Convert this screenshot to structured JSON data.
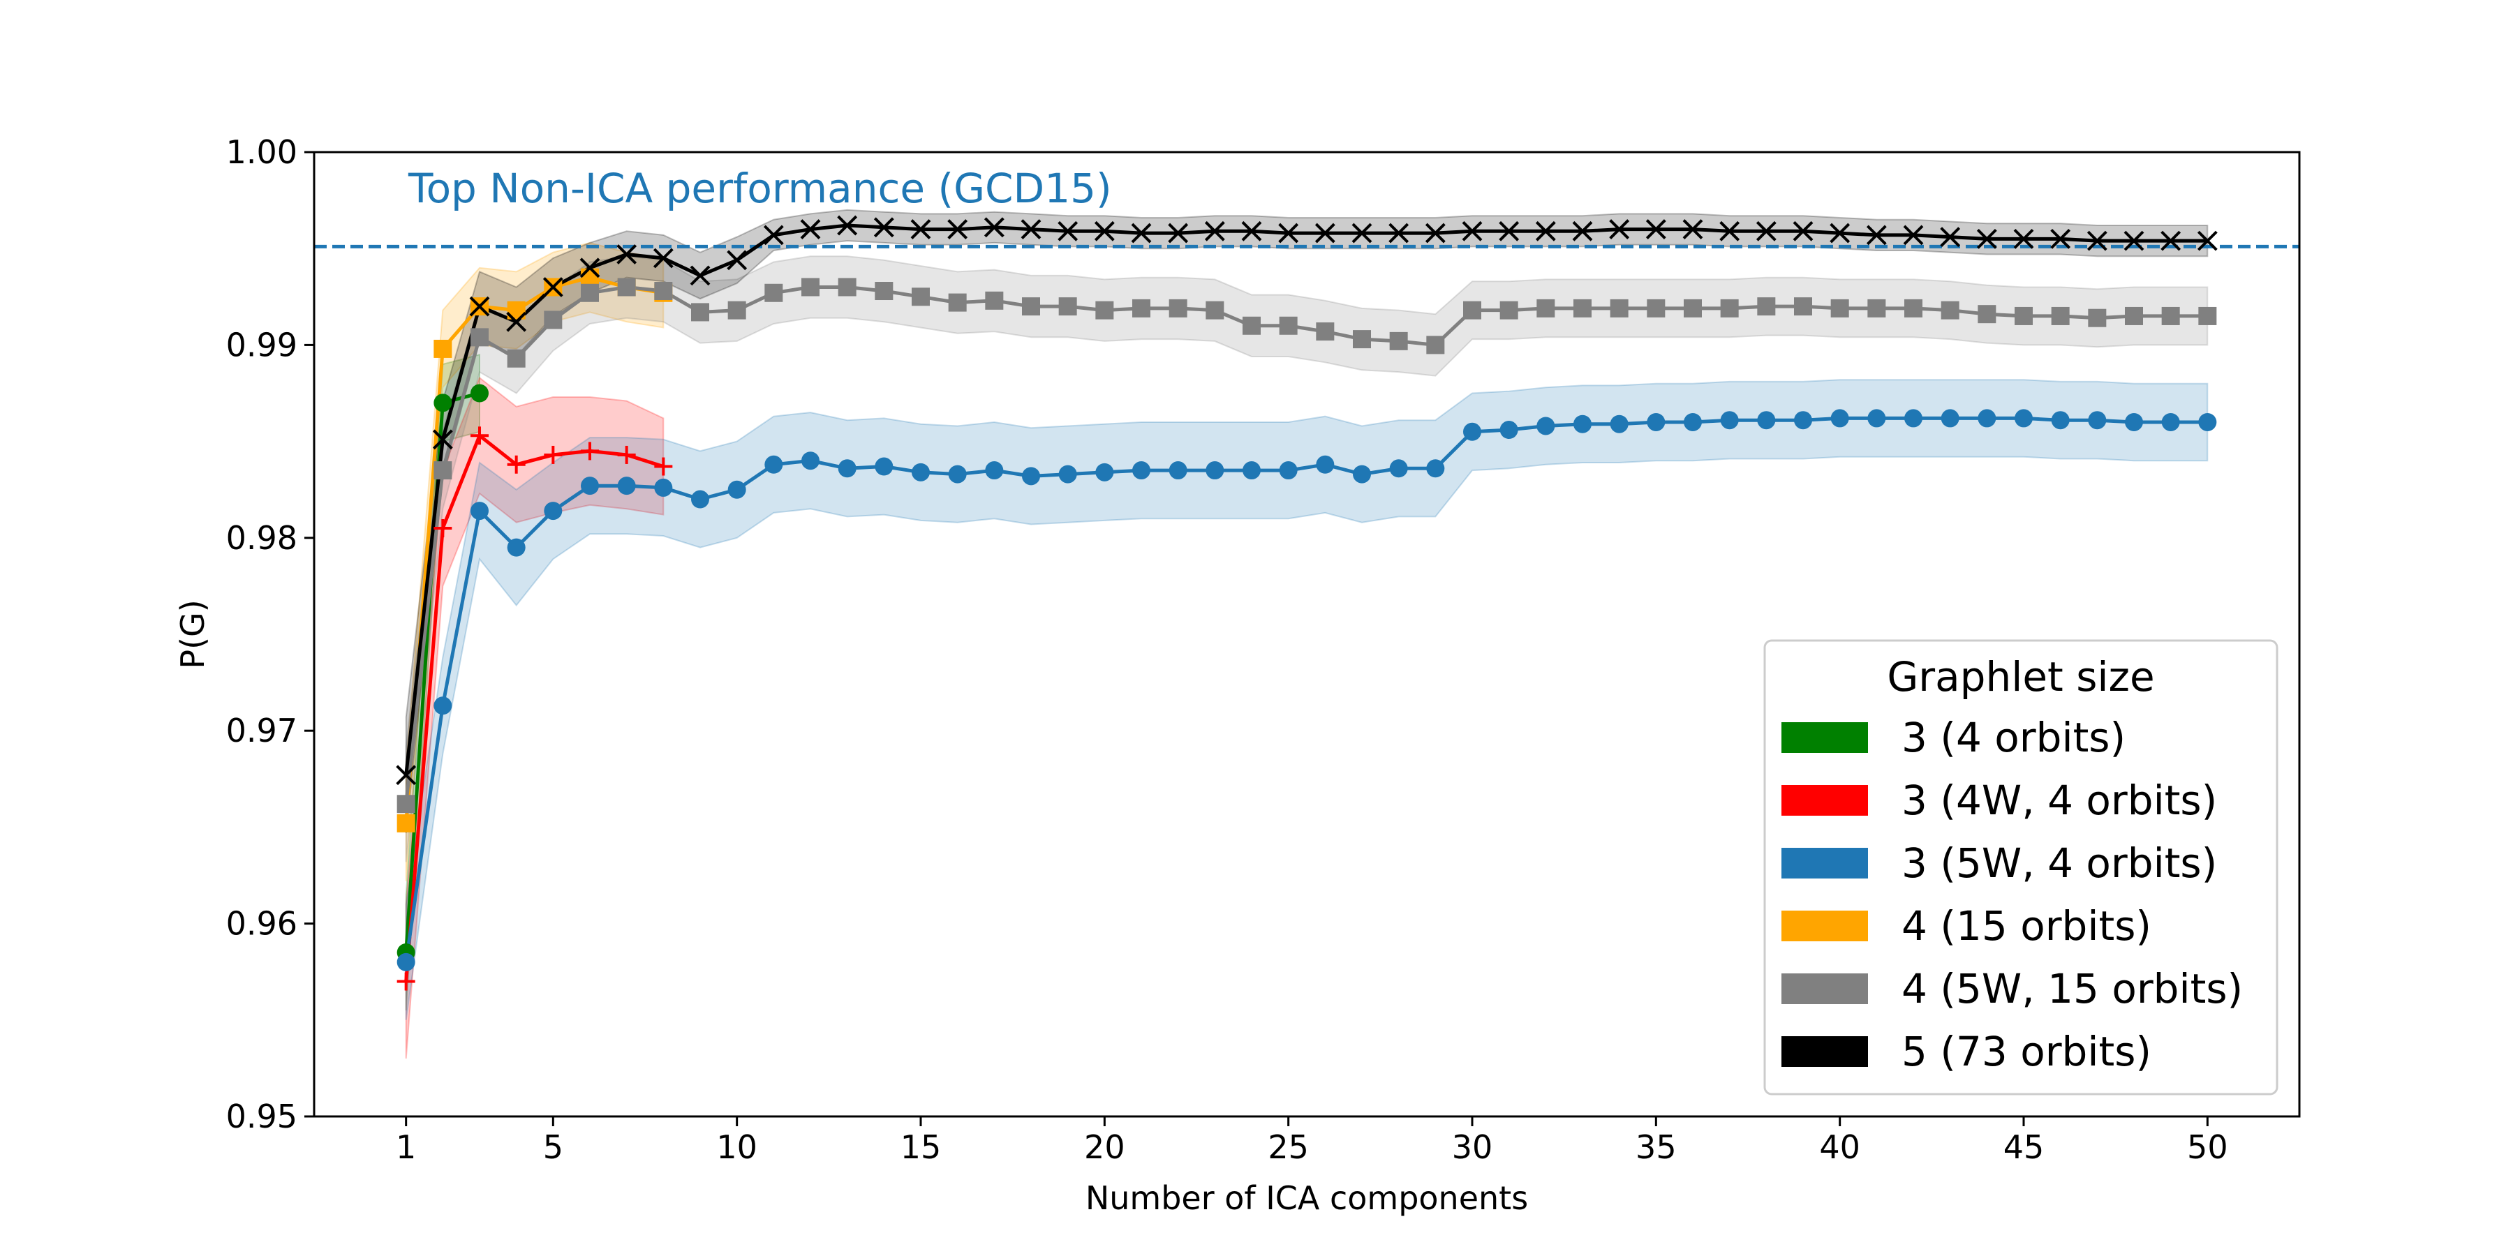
{
  "chart_data": {
    "type": "line",
    "title": "",
    "xlabel": "Number of ICA components",
    "ylabel": "P(G)",
    "xlim": [
      -1.5,
      52.5
    ],
    "ylim": [
      0.95,
      1.0
    ],
    "xticks": [
      1,
      5,
      10,
      15,
      20,
      25,
      30,
      35,
      40,
      45,
      50
    ],
    "yticks": [
      0.95,
      0.96,
      0.97,
      0.98,
      0.99,
      1.0
    ],
    "ytick_labels": [
      "0.95",
      "0.96",
      "0.97",
      "0.98",
      "0.99",
      "1.00"
    ],
    "reference_line": {
      "value": 0.9951,
      "label": "Top Non-ICA performance (GCD15)",
      "color": "#1f77b4",
      "style": "dashed"
    },
    "legend": {
      "title": "Graphlet size",
      "position": "lower-right"
    },
    "series": [
      {
        "name": "3 (4 orbits)",
        "color": "#008000",
        "marker": "circle",
        "x": [
          1,
          2,
          3
        ],
        "values": [
          0.9585,
          0.987,
          0.9875
        ],
        "band": [
          0.003,
          0.002,
          0.002
        ]
      },
      {
        "name": "3 (4W, 4 orbits)",
        "color": "#ff0000",
        "marker": "plus",
        "x": [
          1,
          2,
          3,
          4,
          5,
          6,
          7,
          8
        ],
        "values": [
          0.957,
          0.9805,
          0.9853,
          0.9838,
          0.9843,
          0.9845,
          0.9843,
          0.9837
        ],
        "band": [
          0.004,
          0.003,
          0.003,
          0.003,
          0.003,
          0.0028,
          0.0028,
          0.0025
        ]
      },
      {
        "name": "3 (5W, 4 orbits)",
        "color": "#1f77b4",
        "marker": "circle",
        "x": [
          1,
          2,
          3,
          4,
          5,
          6,
          7,
          8,
          9,
          10,
          11,
          12,
          13,
          14,
          15,
          16,
          17,
          18,
          19,
          20,
          21,
          22,
          23,
          24,
          25,
          26,
          27,
          28,
          29,
          30,
          31,
          32,
          33,
          34,
          35,
          36,
          37,
          38,
          39,
          40,
          41,
          42,
          43,
          44,
          45,
          46,
          47,
          48,
          49,
          50
        ],
        "values": [
          0.958,
          0.9713,
          0.9814,
          0.9795,
          0.9814,
          0.9827,
          0.9827,
          0.9826,
          0.982,
          0.9825,
          0.9838,
          0.984,
          0.9836,
          0.9837,
          0.9834,
          0.9833,
          0.9835,
          0.9832,
          0.9833,
          0.9834,
          0.9835,
          0.9835,
          0.9835,
          0.9835,
          0.9835,
          0.9838,
          0.9833,
          0.9836,
          0.9836,
          0.9855,
          0.9856,
          0.9858,
          0.9859,
          0.9859,
          0.986,
          0.986,
          0.9861,
          0.9861,
          0.9861,
          0.9862,
          0.9862,
          0.9862,
          0.9862,
          0.9862,
          0.9862,
          0.9861,
          0.9861,
          0.986,
          0.986,
          0.986
        ],
        "band": [
          0.003,
          0.0025,
          0.0025,
          0.003,
          0.0025,
          0.0025,
          0.0025,
          0.0025,
          0.0025,
          0.0025,
          0.0025,
          0.0025,
          0.0025,
          0.0025,
          0.0025,
          0.0025,
          0.0025,
          0.0025,
          0.0025,
          0.0025,
          0.0025,
          0.0025,
          0.0025,
          0.0025,
          0.0025,
          0.0025,
          0.0025,
          0.0025,
          0.0025,
          0.002,
          0.002,
          0.002,
          0.002,
          0.002,
          0.002,
          0.002,
          0.002,
          0.002,
          0.002,
          0.002,
          0.002,
          0.002,
          0.002,
          0.002,
          0.002,
          0.002,
          0.002,
          0.002,
          0.002,
          0.002
        ]
      },
      {
        "name": "4 (15 orbits)",
        "color": "#ffa500",
        "marker": "square",
        "x": [
          1,
          2,
          3,
          4,
          5,
          6,
          7,
          8
        ],
        "values": [
          0.9652,
          0.9898,
          0.992,
          0.9918,
          0.993,
          0.9935,
          0.993,
          0.9927
        ],
        "band": [
          0.003,
          0.002,
          0.002,
          0.002,
          0.0018,
          0.0018,
          0.0018,
          0.0018
        ]
      },
      {
        "name": "4 (5W, 15 orbits)",
        "color": "#808080",
        "marker": "square",
        "x": [
          1,
          2,
          3,
          4,
          5,
          6,
          7,
          8,
          9,
          10,
          11,
          12,
          13,
          14,
          15,
          16,
          17,
          18,
          19,
          20,
          21,
          22,
          23,
          24,
          25,
          26,
          27,
          28,
          29,
          30,
          31,
          32,
          33,
          34,
          35,
          36,
          37,
          38,
          39,
          40,
          41,
          42,
          43,
          44,
          45,
          46,
          47,
          48,
          49,
          50
        ],
        "values": [
          0.9662,
          0.9835,
          0.9904,
          0.9893,
          0.9913,
          0.9927,
          0.993,
          0.9928,
          0.9917,
          0.9918,
          0.9927,
          0.993,
          0.993,
          0.9928,
          0.9925,
          0.9922,
          0.9923,
          0.992,
          0.992,
          0.9918,
          0.9919,
          0.9919,
          0.9918,
          0.991,
          0.991,
          0.9907,
          0.9903,
          0.9902,
          0.99,
          0.9918,
          0.9918,
          0.9919,
          0.9919,
          0.9919,
          0.9919,
          0.9919,
          0.9919,
          0.992,
          0.992,
          0.9919,
          0.9919,
          0.9919,
          0.9918,
          0.9916,
          0.9915,
          0.9915,
          0.9914,
          0.9915,
          0.9915,
          0.9915
        ],
        "band": [
          0.003,
          0.002,
          0.0018,
          0.0018,
          0.0016,
          0.0016,
          0.0016,
          0.0016,
          0.0016,
          0.0016,
          0.0016,
          0.0016,
          0.0016,
          0.0016,
          0.0016,
          0.0016,
          0.0016,
          0.0016,
          0.0016,
          0.0016,
          0.0016,
          0.0016,
          0.0016,
          0.0016,
          0.0016,
          0.0016,
          0.0016,
          0.0016,
          0.0016,
          0.0015,
          0.0015,
          0.0015,
          0.0015,
          0.0015,
          0.0015,
          0.0015,
          0.0015,
          0.0015,
          0.0015,
          0.0015,
          0.0015,
          0.0015,
          0.0015,
          0.0015,
          0.0015,
          0.0015,
          0.0015,
          0.0015,
          0.0015,
          0.0015
        ]
      },
      {
        "name": "5 (73 orbits)",
        "color": "#000000",
        "marker": "x",
        "x": [
          1,
          2,
          3,
          4,
          5,
          6,
          7,
          8,
          9,
          10,
          11,
          12,
          13,
          14,
          15,
          16,
          17,
          18,
          19,
          20,
          21,
          22,
          23,
          24,
          25,
          26,
          27,
          28,
          29,
          30,
          31,
          32,
          33,
          34,
          35,
          36,
          37,
          38,
          39,
          40,
          41,
          42,
          43,
          44,
          45,
          46,
          47,
          48,
          49,
          50
        ],
        "values": [
          0.9677,
          0.9851,
          0.992,
          0.9912,
          0.993,
          0.994,
          0.9947,
          0.9945,
          0.9936,
          0.9944,
          0.9957,
          0.996,
          0.9962,
          0.9961,
          0.996,
          0.996,
          0.9961,
          0.996,
          0.9959,
          0.9959,
          0.9958,
          0.9958,
          0.9959,
          0.9959,
          0.9958,
          0.9958,
          0.9958,
          0.9958,
          0.9958,
          0.9959,
          0.9959,
          0.9959,
          0.9959,
          0.996,
          0.996,
          0.996,
          0.9959,
          0.9959,
          0.9959,
          0.9958,
          0.9957,
          0.9957,
          0.9956,
          0.9955,
          0.9955,
          0.9955,
          0.9954,
          0.9954,
          0.9954,
          0.9954
        ],
        "band": [
          0.003,
          0.002,
          0.0018,
          0.0018,
          0.0015,
          0.0013,
          0.0012,
          0.0012,
          0.0012,
          0.0012,
          0.0008,
          0.0008,
          0.0008,
          0.0008,
          0.0008,
          0.0008,
          0.0008,
          0.0008,
          0.0008,
          0.0008,
          0.0008,
          0.0008,
          0.0008,
          0.0008,
          0.0008,
          0.0008,
          0.0008,
          0.0008,
          0.0008,
          0.0008,
          0.0008,
          0.0008,
          0.0008,
          0.0008,
          0.0008,
          0.0008,
          0.0008,
          0.0008,
          0.0008,
          0.0008,
          0.0008,
          0.0008,
          0.0008,
          0.0008,
          0.0008,
          0.0008,
          0.0008,
          0.0008,
          0.0008,
          0.0008
        ]
      }
    ]
  }
}
